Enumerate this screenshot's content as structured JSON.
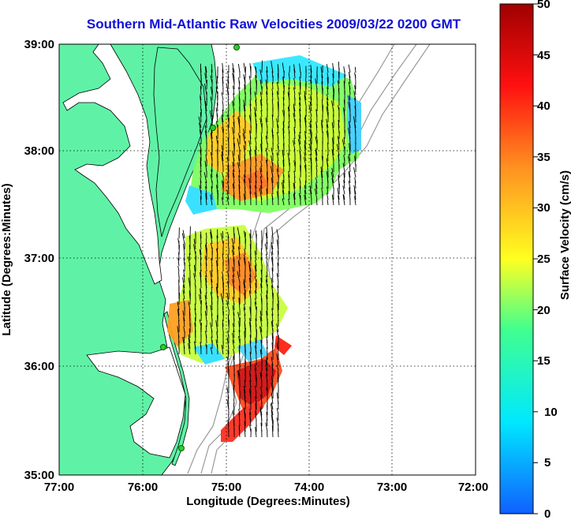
{
  "title": "Southern Mid-Atlantic Raw Velocities 2009/03/22 0200 GMT",
  "xaxis": {
    "label": "Longitude (Degrees:Minutes)",
    "ticks": [
      "77:00",
      "76:00",
      "75:00",
      "74:00",
      "73:00",
      "72:00"
    ]
  },
  "yaxis": {
    "label": "Latitude (Degrees:Minutes)",
    "ticks": [
      "39:00",
      "38:00",
      "37:00",
      "36:00",
      "35:00"
    ]
  },
  "colorbar": {
    "label": "Surface Velocity (cm/s)",
    "ticks": [
      "50",
      "45",
      "40",
      "35",
      "30",
      "25",
      "20",
      "15",
      "10",
      "5",
      "0"
    ],
    "min": 0,
    "max": 50
  },
  "colors": {
    "land": "#5ff2a6",
    "title": "#1010d8",
    "station": "#2ecc2e"
  }
}
